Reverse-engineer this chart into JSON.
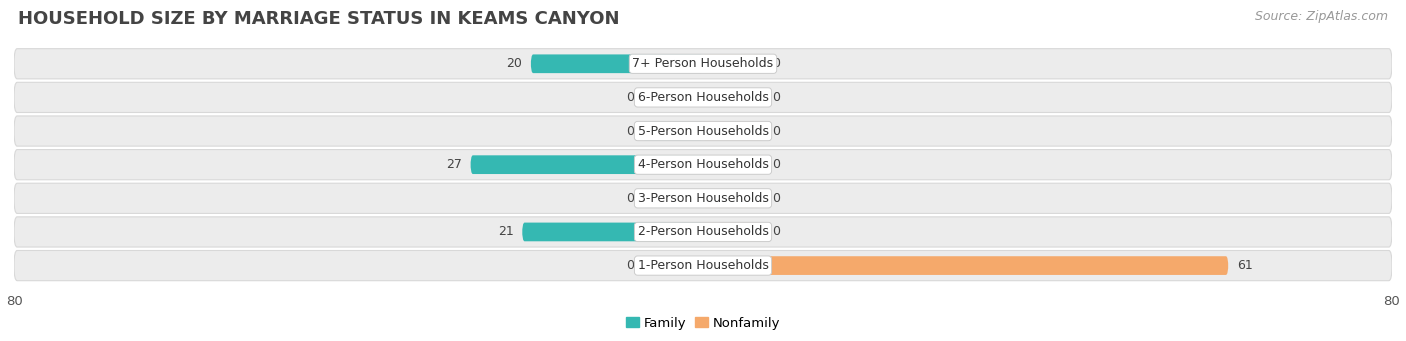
{
  "title": "HOUSEHOLD SIZE BY MARRIAGE STATUS IN KEAMS CANYON",
  "source": "Source: ZipAtlas.com",
  "categories": [
    "7+ Person Households",
    "6-Person Households",
    "5-Person Households",
    "4-Person Households",
    "3-Person Households",
    "2-Person Households",
    "1-Person Households"
  ],
  "family_values": [
    20,
    0,
    0,
    27,
    0,
    21,
    0
  ],
  "nonfamily_values": [
    0,
    0,
    0,
    0,
    0,
    0,
    61
  ],
  "family_color": "#35b8b2",
  "family_stub_color": "#90d4d2",
  "nonfamily_color": "#f5a96b",
  "nonfamily_stub_color": "#f5cfa0",
  "row_bg_color": "#ececec",
  "row_border_color": "#d8d8d8",
  "axis_limit": 80,
  "stub_size": 7,
  "title_fontsize": 13,
  "source_fontsize": 9,
  "value_fontsize": 9,
  "label_fontsize": 9,
  "tick_fontsize": 9.5,
  "legend_fontsize": 9.5,
  "left_tick_label": "80",
  "right_tick_label": "80"
}
